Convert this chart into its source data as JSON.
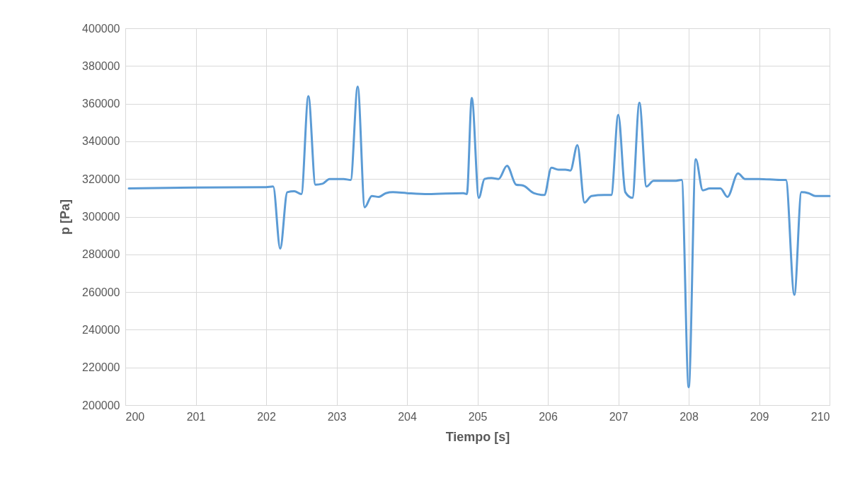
{
  "chart_data": {
    "type": "line",
    "xlabel": "Tiempo [s]",
    "ylabel": "p [Pa]",
    "xlim": [
      200,
      210
    ],
    "xticks": [
      200,
      201,
      202,
      203,
      204,
      205,
      206,
      207,
      208,
      209,
      210
    ],
    "ylim": [
      200000,
      400000
    ],
    "yticks": [
      200000,
      220000,
      240000,
      260000,
      280000,
      300000,
      320000,
      340000,
      360000,
      380000,
      400000
    ],
    "grid": true,
    "marker": "none",
    "line_style": "solid",
    "x": [
      200.05,
      201,
      202,
      202.1,
      202.2,
      202.3,
      202.4,
      202.5,
      202.6,
      202.7,
      202.8,
      202.9,
      203.0,
      203.1,
      203.2,
      203.3,
      203.4,
      203.5,
      203.6,
      203.7,
      203.8,
      204,
      204.3,
      204.8,
      204.85,
      204.92,
      205.02,
      205.1,
      205.2,
      205.3,
      205.42,
      205.55,
      205.65,
      205.8,
      205.95,
      206.05,
      206.15,
      206.25,
      206.32,
      206.42,
      206.52,
      206.62,
      206.8,
      206.9,
      207.0,
      207.1,
      207.2,
      207.3,
      207.4,
      207.5,
      207.8,
      207.9,
      208.0,
      208.1,
      208.2,
      208.3,
      208.45,
      208.55,
      208.7,
      208.8,
      209.0,
      209.3,
      209.38,
      209.5,
      209.6,
      209.7,
      209.8,
      210
    ],
    "series": [
      {
        "color": "#5b9bd5",
        "values": [
          315000,
          315500,
          315700,
          316000,
          283000,
          313000,
          313500,
          312000,
          364000,
          317000,
          317500,
          320000,
          320000,
          320000,
          319500,
          369000,
          305000,
          311000,
          310500,
          312500,
          313000,
          312500,
          312000,
          312500,
          312000,
          363000,
          310000,
          320000,
          320500,
          320000,
          327000,
          317000,
          316500,
          312500,
          311500,
          326000,
          325000,
          325000,
          324500,
          338000,
          307500,
          311000,
          311500,
          311500,
          354000,
          313000,
          310000,
          360500,
          316000,
          319000,
          319000,
          319500,
          209500,
          330500,
          314000,
          315000,
          315000,
          310500,
          323000,
          320000,
          320000,
          319500,
          319500,
          258500,
          313000,
          312500,
          311000,
          311000
        ]
      }
    ]
  }
}
